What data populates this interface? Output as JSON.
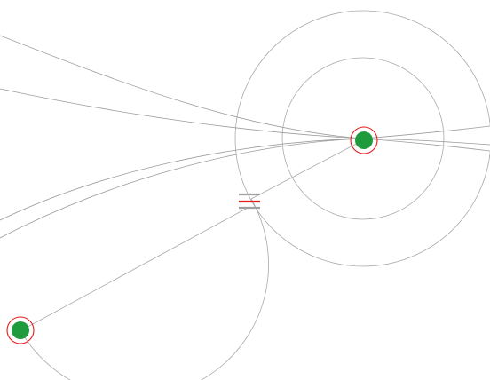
{
  "canvas": {
    "background": "#ffffff"
  },
  "colors": {
    "node_fill": "#1f9a3c",
    "node_ring": "#e31b1b",
    "guide_stroke": "#a9a9a9",
    "curve_stroke": "#9b9b9b",
    "capacitor_plate": "#a0a0a0",
    "capacitor_center": "#e31b1b"
  },
  "nodes": [
    {
      "id": "node-a",
      "kind": "source-node"
    },
    {
      "id": "node-b",
      "kind": "sink-node"
    }
  ],
  "components": [
    {
      "id": "capacitor",
      "kind": "capacitor-symbol"
    }
  ],
  "connections": [
    {
      "from": "node-b",
      "to": "capacitor"
    },
    {
      "from": "capacitor",
      "to": "node-a"
    }
  ]
}
